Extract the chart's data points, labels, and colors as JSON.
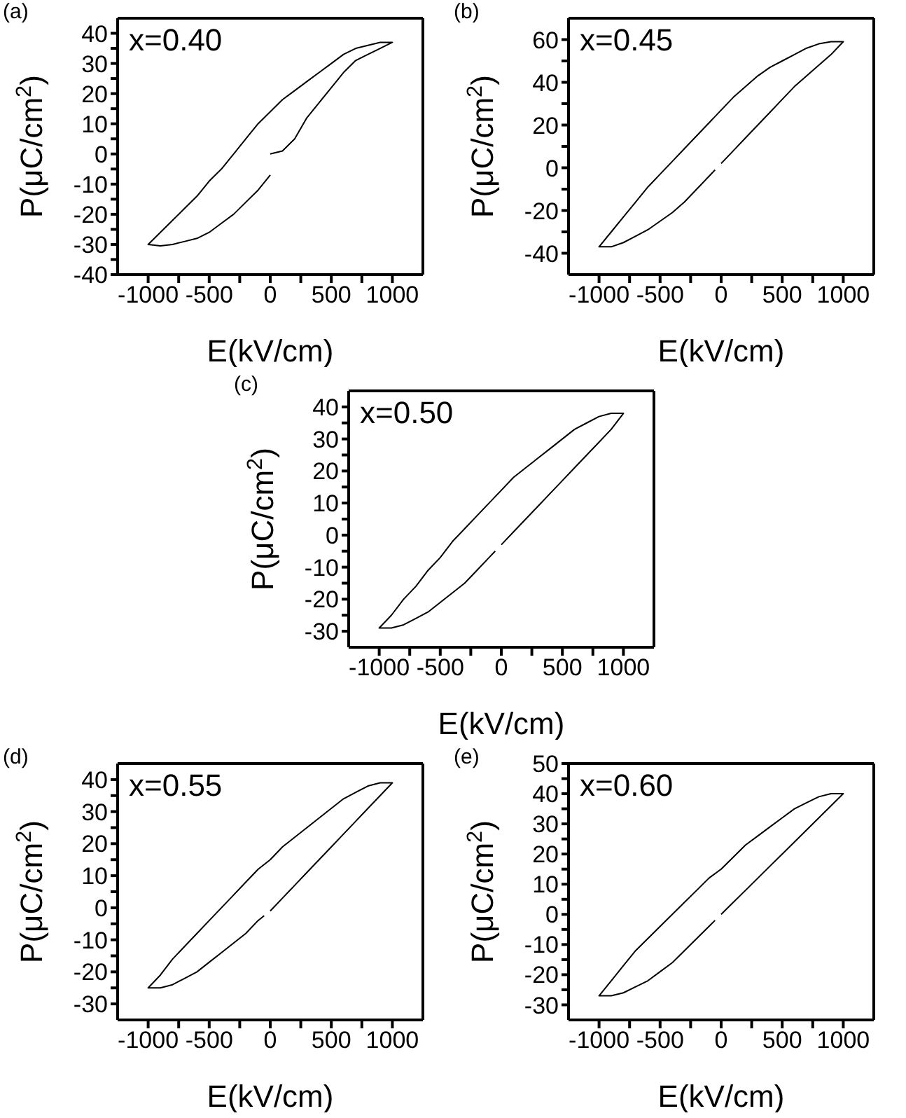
{
  "chart_data": [
    {
      "type": "line",
      "xlabel": "E(kV/cm)",
      "ylabel": "P(μC/cm$^{2}$)",
      "annotations": [
        "(a)",
        "x=0.40"
      ],
      "xlim": [
        -1250,
        1250
      ],
      "ylim": [
        -40,
        45
      ],
      "xticks": [
        -1000,
        {
          "value": -750,
          "label": null
        },
        -500,
        {
          "value": -250,
          "label": null
        },
        0,
        {
          "value": 250,
          "label": null
        },
        500,
        {
          "value": 750,
          "label": null
        },
        1000
      ],
      "yticks": [
        -40,
        {
          "value": -35,
          "label": null
        },
        -30,
        {
          "value": -25,
          "label": null
        },
        -20,
        {
          "value": -15,
          "label": null
        },
        -10,
        {
          "value": -5,
          "label": null
        },
        0,
        {
          "value": 5,
          "label": null
        },
        10,
        {
          "value": 15,
          "label": null
        },
        20,
        {
          "value": 25,
          "label": null
        },
        30,
        {
          "value": 35,
          "label": null
        },
        40
      ],
      "grid": false,
      "legend": false,
      "marker": "none",
      "line_style": "solid",
      "series": [
        {
          "color": "#000000",
          "x": [
            0,
            100,
            200,
            300,
            400,
            500,
            600,
            700,
            800,
            900,
            1000,
            900,
            800,
            700,
            600,
            500,
            400,
            300,
            200,
            100,
            0,
            -100,
            -200,
            -300,
            -400,
            -500,
            -600,
            -700,
            -800,
            -900,
            -1000,
            -900,
            -800,
            -700,
            -600,
            -500,
            -400,
            -300,
            -200,
            -100,
            0
          ],
          "values": [
            0,
            1,
            5,
            12,
            17,
            22,
            27,
            31,
            33,
            35,
            37,
            37,
            36,
            35,
            33,
            30,
            27,
            24,
            21,
            18,
            14,
            10,
            5,
            0,
            -5,
            -9,
            -14,
            -18,
            -22,
            -26,
            -30,
            -30.5,
            -30,
            -29,
            -28,
            -26,
            -23,
            -20,
            -16,
            -12,
            -7
          ]
        }
      ]
    },
    {
      "type": "line",
      "xlabel": "E(kV/cm)",
      "ylabel": "P(μC/cm$^{2}$)",
      "annotations": [
        "(b)",
        "x=0.45"
      ],
      "xlim": [
        -1250,
        1250
      ],
      "ylim": [
        -50,
        70
      ],
      "xticks": [
        -1000,
        {
          "value": -750,
          "label": null
        },
        -500,
        {
          "value": -250,
          "label": null
        },
        0,
        {
          "value": 250,
          "label": null
        },
        500,
        {
          "value": 750,
          "label": null
        },
        1000
      ],
      "yticks": [
        -40,
        {
          "value": -30,
          "label": null
        },
        -20,
        {
          "value": -10,
          "label": null
        },
        0,
        {
          "value": 10,
          "label": null
        },
        20,
        {
          "value": 30,
          "label": null
        },
        40,
        {
          "value": 50,
          "label": null
        },
        60
      ],
      "grid": false,
      "legend": false,
      "marker": "none",
      "line_style": "solid",
      "series": [
        {
          "color": "#000000",
          "x": [
            0,
            100,
            200,
            300,
            400,
            500,
            600,
            700,
            800,
            900,
            1000,
            900,
            800,
            700,
            600,
            500,
            400,
            300,
            200,
            100,
            0,
            -100,
            -200,
            -300,
            -400,
            -500,
            -600,
            -700,
            -800,
            -900,
            -1000,
            -900,
            -800,
            -700,
            -600,
            -500,
            -400,
            -300,
            -200,
            -100,
            -50
          ],
          "values": [
            2,
            8,
            14,
            20,
            26,
            32,
            38,
            43,
            48,
            53,
            59,
            59,
            58,
            56,
            53,
            50,
            47,
            43,
            38,
            33,
            27,
            21,
            15,
            9,
            3,
            -3,
            -9,
            -16,
            -23,
            -30,
            -37,
            -37,
            -35,
            -32,
            -29,
            -25,
            -21,
            -16,
            -10,
            -4,
            -1
          ]
        }
      ]
    },
    {
      "type": "line",
      "xlabel": "E(kV/cm)",
      "ylabel": "P(μC/cm$^{2}$)",
      "annotations": [
        "(c)",
        "x=0.50"
      ],
      "xlim": [
        -1250,
        1250
      ],
      "ylim": [
        -35,
        45
      ],
      "xticks": [
        -1000,
        {
          "value": -750,
          "label": null
        },
        -500,
        {
          "value": -250,
          "label": null
        },
        0,
        {
          "value": 250,
          "label": null
        },
        500,
        {
          "value": 750,
          "label": null
        },
        1000
      ],
      "yticks": [
        -30,
        {
          "value": -25,
          "label": null
        },
        -20,
        {
          "value": -15,
          "label": null
        },
        -10,
        {
          "value": -5,
          "label": null
        },
        0,
        {
          "value": 5,
          "label": null
        },
        10,
        {
          "value": 15,
          "label": null
        },
        20,
        {
          "value": 25,
          "label": null
        },
        30,
        {
          "value": 35,
          "label": null
        },
        40
      ],
      "grid": false,
      "legend": false,
      "marker": "none",
      "line_style": "solid",
      "series": [
        {
          "color": "#000000",
          "x": [
            0,
            100,
            200,
            300,
            400,
            500,
            600,
            700,
            800,
            900,
            1000,
            900,
            800,
            700,
            600,
            500,
            400,
            300,
            200,
            100,
            0,
            -100,
            -200,
            -300,
            -400,
            -500,
            -600,
            -700,
            -800,
            -900,
            -1000,
            -900,
            -800,
            -700,
            -600,
            -500,
            -400,
            -300,
            -200,
            -100,
            -50
          ],
          "values": [
            -3,
            1,
            5,
            9,
            13,
            17,
            21,
            25,
            29,
            33,
            38,
            38,
            37,
            35,
            33,
            30,
            27,
            24,
            21,
            18,
            14,
            10,
            6,
            2,
            -2,
            -7,
            -11,
            -16,
            -20,
            -25,
            -29,
            -29,
            -28,
            -26,
            -24,
            -21,
            -18,
            -15,
            -11,
            -7,
            -5
          ]
        }
      ]
    },
    {
      "type": "line",
      "xlabel": "E(kV/cm)",
      "ylabel": "P(μC/cm$^{2}$)",
      "annotations": [
        "(d)",
        "x=0.55"
      ],
      "xlim": [
        -1250,
        1250
      ],
      "ylim": [
        -35,
        45
      ],
      "xticks": [
        -1000,
        {
          "value": -750,
          "label": null
        },
        -500,
        {
          "value": -250,
          "label": null
        },
        0,
        {
          "value": 250,
          "label": null
        },
        500,
        {
          "value": 750,
          "label": null
        },
        1000
      ],
      "yticks": [
        -30,
        {
          "value": -25,
          "label": null
        },
        -20,
        {
          "value": -15,
          "label": null
        },
        -10,
        {
          "value": -5,
          "label": null
        },
        0,
        {
          "value": 5,
          "label": null
        },
        10,
        {
          "value": 15,
          "label": null
        },
        20,
        {
          "value": 25,
          "label": null
        },
        30,
        {
          "value": 35,
          "label": null
        },
        40
      ],
      "grid": false,
      "legend": false,
      "marker": "none",
      "line_style": "solid",
      "series": [
        {
          "color": "#000000",
          "x": [
            0,
            100,
            200,
            300,
            400,
            500,
            600,
            700,
            800,
            900,
            1000,
            900,
            800,
            700,
            600,
            500,
            400,
            300,
            200,
            100,
            0,
            -100,
            -200,
            -300,
            -400,
            -500,
            -600,
            -700,
            -800,
            -900,
            -1000,
            -900,
            -800,
            -700,
            -600,
            -500,
            -400,
            -300,
            -200,
            -100,
            -50
          ],
          "values": [
            -1,
            3,
            7,
            11,
            15,
            19,
            23,
            27,
            31,
            35,
            39,
            39,
            38,
            36,
            34,
            31,
            28,
            25,
            22,
            19,
            15,
            12,
            8,
            4,
            0,
            -4,
            -8,
            -12,
            -16,
            -21,
            -25,
            -25,
            -24,
            -22,
            -20,
            -17,
            -14,
            -11,
            -8,
            -4,
            -2.5
          ]
        }
      ]
    },
    {
      "type": "line",
      "xlabel": "E(kV/cm)",
      "ylabel": "P(μC/cm$^{2}$)",
      "annotations": [
        "(e)",
        "x=0.60"
      ],
      "xlim": [
        -1250,
        1250
      ],
      "ylim": [
        -35,
        50
      ],
      "xticks": [
        -1000,
        {
          "value": -750,
          "label": null
        },
        -500,
        {
          "value": -250,
          "label": null
        },
        0,
        {
          "value": 250,
          "label": null
        },
        500,
        {
          "value": 750,
          "label": null
        },
        1000
      ],
      "yticks": [
        -30,
        {
          "value": -25,
          "label": null
        },
        -20,
        {
          "value": -15,
          "label": null
        },
        -10,
        {
          "value": -5,
          "label": null
        },
        0,
        {
          "value": 5,
          "label": null
        },
        10,
        {
          "value": 15,
          "label": null
        },
        20,
        {
          "value": 25,
          "label": null
        },
        30,
        {
          "value": 35,
          "label": null
        },
        40,
        {
          "value": 45,
          "label": null
        },
        50
      ],
      "grid": false,
      "legend": false,
      "marker": "none",
      "line_style": "solid",
      "series": [
        {
          "color": "#000000",
          "x": [
            0,
            100,
            200,
            300,
            400,
            500,
            600,
            700,
            800,
            900,
            1000,
            900,
            800,
            700,
            600,
            500,
            400,
            300,
            200,
            100,
            0,
            -100,
            -200,
            -300,
            -400,
            -500,
            -600,
            -700,
            -800,
            -900,
            -1000,
            -900,
            -800,
            -700,
            -600,
            -500,
            -400,
            -300,
            -200,
            -100,
            -50
          ],
          "values": [
            0,
            4,
            8,
            12,
            16,
            20,
            24,
            28,
            32,
            36,
            40,
            40,
            39,
            37,
            35,
            32,
            29,
            26,
            23,
            19,
            15,
            12,
            8,
            4,
            0,
            -4,
            -8,
            -12,
            -17,
            -22,
            -27,
            -27,
            -26,
            -24,
            -22,
            -19,
            -16,
            -12,
            -8,
            -4,
            -2
          ]
        }
      ]
    }
  ]
}
